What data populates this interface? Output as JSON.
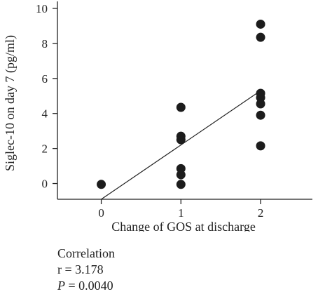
{
  "chart_data": {
    "type": "scatter",
    "title": "",
    "xlabel": "Change of GOS at discharge",
    "ylabel": "Siglec-10 on day 7 (pg/ml)",
    "x_ticks": [
      0,
      1,
      2
    ],
    "y_ticks": [
      0,
      2,
      4,
      6,
      8,
      10
    ],
    "xlim": [
      -0.55,
      2.65
    ],
    "ylim": [
      -0.9,
      10.4
    ],
    "grid": false,
    "points": [
      {
        "x": 0,
        "y": -0.05
      },
      {
        "x": 1,
        "y": 4.35
      },
      {
        "x": 1,
        "y": 2.7
      },
      {
        "x": 1,
        "y": 2.5
      },
      {
        "x": 1,
        "y": 0.85
      },
      {
        "x": 1,
        "y": 0.5
      },
      {
        "x": 1,
        "y": -0.05
      },
      {
        "x": 2,
        "y": 9.1
      },
      {
        "x": 2,
        "y": 8.35
      },
      {
        "x": 2,
        "y": 5.15
      },
      {
        "x": 2,
        "y": 4.9
      },
      {
        "x": 2,
        "y": 4.55
      },
      {
        "x": 2,
        "y": 3.9
      },
      {
        "x": 2,
        "y": 2.15
      }
    ],
    "fit_line": {
      "x": [
        0,
        2
      ],
      "y": [
        -0.9,
        5.3
      ]
    }
  },
  "stats": {
    "heading": "Correlation",
    "r_text": "r = 3.178",
    "p_symbol": "P",
    "p_rest": " = 0.0040"
  }
}
